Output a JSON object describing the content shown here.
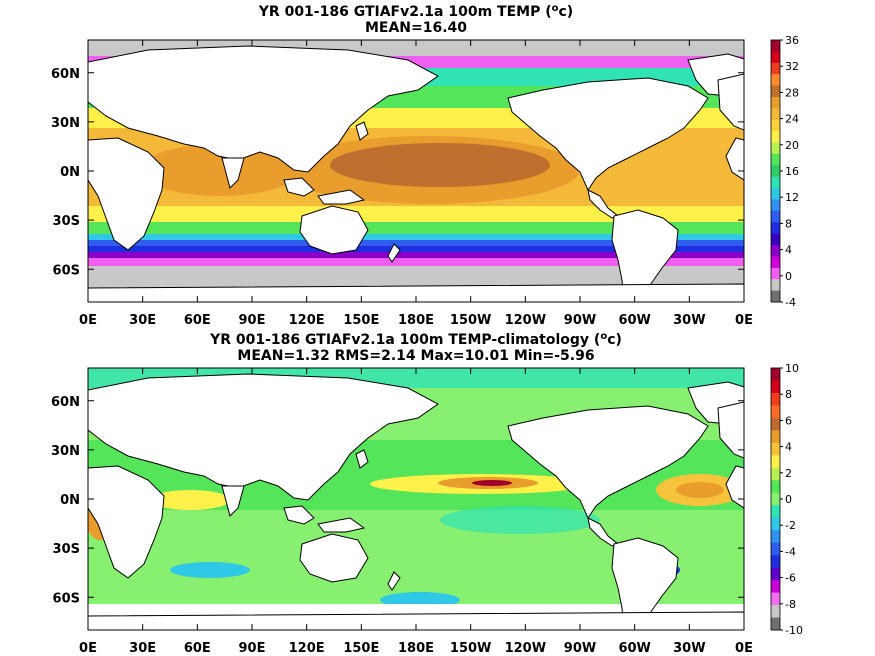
{
  "panels": [
    {
      "title_line1": "YR 001-186 GTIAFv2.1a 100m TEMP (",
      "title_line1_sup": "o",
      "title_line1_tail": "c)",
      "title_line2": "MEAN=16.40",
      "lat_labels": [
        "60N",
        "30N",
        "0N",
        "30S",
        "60S"
      ],
      "lat_values": [
        60,
        30,
        0,
        -30,
        -60
      ],
      "lon_labels": [
        "0E",
        "30E",
        "60E",
        "90E",
        "120E",
        "150E",
        "180E",
        "150W",
        "120W",
        "90W",
        "60W",
        "30W",
        "0E"
      ],
      "colorbar_labels": [
        "36",
        "32",
        "28",
        "24",
        "20",
        "16",
        "12",
        "8",
        "4",
        "0",
        "-4"
      ],
      "colorbar_colors": [
        "#a0002a",
        "#d3001a",
        "#ef3c1e",
        "#ff8a2e",
        "#bf6f2e",
        "#e89d2c",
        "#f5b93a",
        "#ffd23a",
        "#fff04a",
        "#b7f050",
        "#55e55a",
        "#2ecb66",
        "#2fe3b5",
        "#2fc8e6",
        "#2f92f0",
        "#2e5df0",
        "#1f2fe0",
        "#3a00c0",
        "#8a00c8",
        "#d000d8",
        "#f060f0",
        "#c8c8c8",
        "#707070"
      ]
    },
    {
      "title_line1": "YR 001-186 GTIAFv2.1a 100m TEMP-climatology (",
      "title_line1_sup": "o",
      "title_line1_tail": "c)",
      "title_line2": "MEAN=1.32   RMS=2.14   Max=10.01   Min=-5.96",
      "lat_labels": [
        "60N",
        "30N",
        "0N",
        "30S",
        "60S"
      ],
      "lat_values": [
        60,
        30,
        0,
        -30,
        -60
      ],
      "lon_labels": [
        "0E",
        "30E",
        "60E",
        "90E",
        "120E",
        "150E",
        "180E",
        "150W",
        "120W",
        "90W",
        "60W",
        "30W",
        "0E"
      ],
      "colorbar_labels": [
        "10",
        "8",
        "6",
        "4",
        "2",
        "0",
        "-2",
        "-4",
        "-6",
        "-8",
        "-10"
      ],
      "colorbar_colors": [
        "#a0002a",
        "#d3001a",
        "#ef3c1e",
        "#ff6a2a",
        "#c06a30",
        "#e89d2c",
        "#f5c43a",
        "#fff04a",
        "#b7f050",
        "#55e55a",
        "#88f070",
        "#2fe3b5",
        "#2fc8e6",
        "#2f92f0",
        "#2e5df0",
        "#1f2fe0",
        "#6000c8",
        "#c800d8",
        "#f070f0",
        "#c8c8c8",
        "#707070"
      ]
    }
  ]
}
